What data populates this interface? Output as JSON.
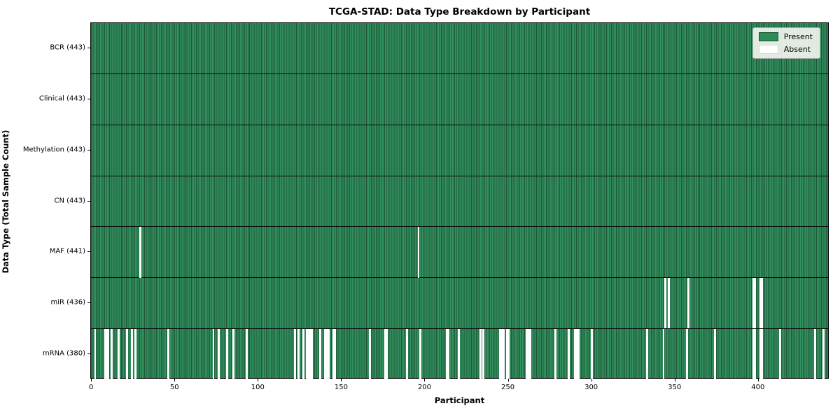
{
  "window": {
    "kind": "static-chart-figure"
  },
  "chart_data": {
    "type": "heatmap",
    "title": "TCGA-STAD: Data Type Breakdown by Participant",
    "xlabel": "Participant",
    "ylabel": "Data Type (Total Sample Count)",
    "x_ticks": [
      0,
      50,
      100,
      150,
      200,
      250,
      300,
      350,
      400
    ],
    "x_range": [
      -0.5,
      442.5
    ],
    "n_participants": 443,
    "grid": false,
    "legend_position": "upper right",
    "legend": [
      {
        "label": "Present",
        "color": "#2e8b57"
      },
      {
        "label": "Absent",
        "color": "#ffffff"
      }
    ],
    "colors": {
      "present_fill": "#349361",
      "bar_edge_dark": "#1b5737",
      "absent_fill": "#ffffff",
      "divider": "#0a0a0a",
      "legend_bg": "#ecf0e9"
    },
    "rows": [
      {
        "label": "BCR (443)",
        "name": "BCR",
        "present_count": 443,
        "absent_participants": []
      },
      {
        "label": "Clinical (443)",
        "name": "Clinical",
        "present_count": 443,
        "absent_participants": []
      },
      {
        "label": "Methylation (443)",
        "name": "Methylation",
        "present_count": 443,
        "absent_participants": []
      },
      {
        "label": "CN (443)",
        "name": "CN",
        "present_count": 443,
        "absent_participants": []
      },
      {
        "label": "MAF (441)",
        "name": "MAF",
        "present_count": 441,
        "absent_participants": [
          29,
          196
        ]
      },
      {
        "label": "miR (436)",
        "name": "miR",
        "present_count": 436,
        "absent_participants": [
          344,
          346,
          358,
          397,
          398,
          401,
          402
        ]
      },
      {
        "label": "mRNA (380)",
        "name": "mRNA",
        "present_count": 380,
        "absent_participants": [
          2,
          8,
          9,
          10,
          12,
          16,
          21,
          24,
          26,
          46,
          73,
          76,
          81,
          85,
          93,
          122,
          124,
          127,
          129,
          130,
          131,
          132,
          137,
          140,
          141,
          142,
          145,
          146,
          167,
          176,
          177,
          189,
          197,
          213,
          214,
          220,
          233,
          235,
          245,
          246,
          247,
          249,
          250,
          261,
          262,
          263,
          278,
          286,
          290,
          291,
          292,
          300,
          333,
          343,
          357,
          374,
          397,
          398,
          401,
          402,
          413,
          434,
          439
        ]
      }
    ]
  }
}
